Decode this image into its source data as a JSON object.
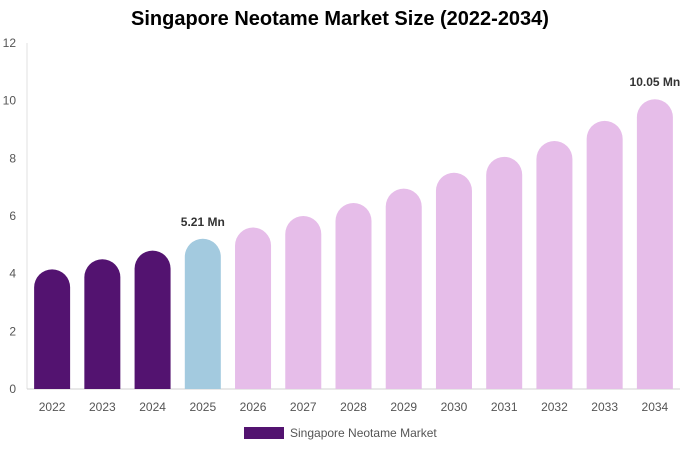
{
  "chart_data": {
    "type": "bar",
    "title": "Singapore Neotame Market Size (2022-2034)",
    "xlabel": "",
    "ylabel": "",
    "ylim": [
      0,
      12
    ],
    "y_ticks": [
      "0",
      "2",
      "4",
      "6",
      "8",
      "10",
      "12"
    ],
    "categories": [
      "2022",
      "2023",
      "2024",
      "2025",
      "2026",
      "2027",
      "2028",
      "2029",
      "2030",
      "2031",
      "2032",
      "2033",
      "2034"
    ],
    "series": [
      {
        "name": "Singapore Neotame Market",
        "values": [
          4.15,
          4.5,
          4.8,
          5.21,
          5.6,
          6.0,
          6.45,
          6.95,
          7.5,
          8.05,
          8.6,
          9.3,
          10.05
        ]
      }
    ],
    "bar_colors": [
      "#531370",
      "#531370",
      "#531370",
      "#a3cadf",
      "#e6bde9",
      "#e6bde9",
      "#e6bde9",
      "#e6bde9",
      "#e6bde9",
      "#e6bde9",
      "#e6bde9",
      "#e6bde9",
      "#e6bde9"
    ],
    "data_labels": [
      {
        "category": "2025",
        "text": "5.21 Mn"
      },
      {
        "category": "2034",
        "text": "10.05 Mn"
      }
    ],
    "legend": {
      "label": "Singapore Neotame Market",
      "color": "#531370",
      "placement": "bottom-center"
    },
    "grid": false
  }
}
